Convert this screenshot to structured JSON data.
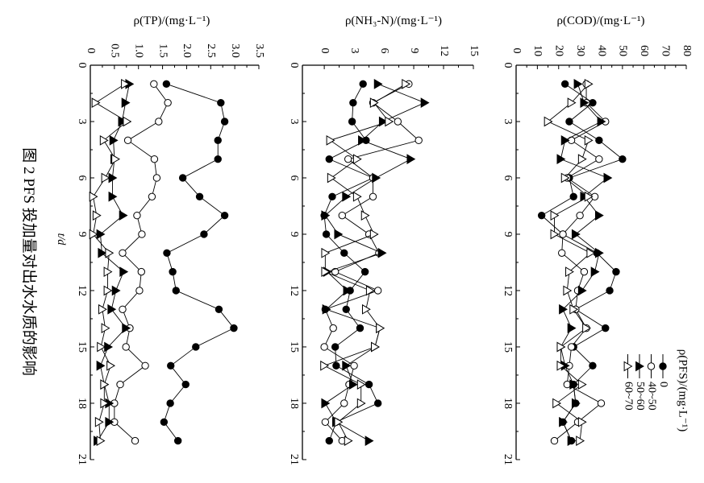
{
  "caption": "图 2  PFS 投加量对出水水质的影响",
  "legend": {
    "title": "ρ(PFS)/(mg·L⁻¹)",
    "entries": [
      {
        "label": "0",
        "marker": "filled-circle"
      },
      {
        "label": "40~50",
        "marker": "open-circle"
      },
      {
        "label": "50~60",
        "marker": "filled-triangle"
      },
      {
        "label": "60~70",
        "marker": "open-triangle"
      }
    ]
  },
  "orientation": "rotated 90° clockwise",
  "chart_data": [
    {
      "type": "line",
      "title": "",
      "xlabel": "t/d",
      "ylabel": "ρ(TP)/(mg·L⁻¹)",
      "xlim": [
        0,
        21
      ],
      "ylim": [
        0,
        3.5
      ],
      "xticks": [
        "0",
        "3",
        "6",
        "9",
        "12",
        "15",
        "18",
        "21"
      ],
      "yticks": [
        "0",
        "0.5",
        "1.0",
        "1.5",
        "2.0",
        "2.5",
        "3.0",
        "3.5"
      ],
      "x": [
        1,
        2,
        3,
        4,
        5,
        6,
        7,
        8,
        9,
        10,
        11,
        12,
        13,
        14,
        15,
        16,
        17,
        18,
        19,
        20
      ],
      "series": [
        {
          "name": "0",
          "values": [
            1.58,
            2.71,
            2.79,
            2.65,
            2.65,
            1.92,
            2.27,
            2.79,
            2.36,
            1.59,
            1.71,
            1.78,
            2.67,
            2.98,
            2.19,
            1.67,
            1.98,
            1.66,
            1.53,
            1.82
          ]
        },
        {
          "name": "40~50",
          "values": [
            1.32,
            1.61,
            1.42,
            0.78,
            1.33,
            1.38,
            1.28,
            0.97,
            1.07,
            0.67,
            1.06,
            1.02,
            0.67,
            0.82,
            0.74,
            1.14,
            0.62,
            0.5,
            0.5,
            0.93
          ]
        },
        {
          "name": "50~60",
          "values": [
            0.81,
            0.73,
            0.66,
            0.48,
            0.5,
            0.46,
            0.46,
            0.68,
            0.21,
            0.24,
            0.69,
            0.53,
            0.44,
            0.74,
            0.37,
            0.21,
            0.29,
            0.39,
            0.39,
            0.15
          ]
        },
        {
          "name": "60~70",
          "values": [
            0.72,
            0.11,
            0.76,
            0.28,
            0.52,
            0.31,
            0.06,
            0.13,
            0.06,
            0.39,
            0.36,
            0.36,
            0.25,
            0.31,
            0.22,
            0.42,
            0.29,
            0.29,
            0.18,
            0.21
          ]
        }
      ]
    },
    {
      "type": "line",
      "title": "",
      "xlabel": "t/d",
      "ylabel": "ρ(NH₃-N)/(mg·L⁻¹)",
      "xlim": [
        0,
        21
      ],
      "ylim": [
        -2.2,
        15
      ],
      "xticks": [
        "0",
        "3",
        "6",
        "9",
        "12",
        "15",
        "18",
        "21"
      ],
      "yticks": [
        "0",
        "3",
        "6",
        "9",
        "12",
        "15"
      ],
      "x": [
        1,
        2,
        3,
        4,
        5,
        6,
        7,
        8,
        9,
        10,
        11,
        12,
        13,
        14,
        15,
        16,
        17,
        18,
        19,
        20
      ],
      "series": [
        {
          "name": "0",
          "values": [
            3.9,
            2.9,
            2.8,
            4.2,
            0.5,
            4.9,
            0.8,
            0,
            0.2,
            2.0,
            4.1,
            2.6,
            2.2,
            3.6,
            1.1,
            1.2,
            4.5,
            5.4,
            1.2,
            0.5
          ]
        },
        {
          "name": "40~50",
          "values": [
            8.5,
            4.9,
            7.4,
            9.5,
            2.4,
            4.9,
            4.9,
            1.8,
            4.5,
            5.5,
            1.1,
            5.4,
            0.1,
            0.9,
            0,
            3.0,
            2.5,
            2.0,
            0.1,
            1.8
          ]
        },
        {
          "name": "50~60",
          "values": [
            5.4,
            10.1,
            5.9,
            3.8,
            8.7,
            5.2,
            2.2,
            0.1,
            1.4,
            5.8,
            0.3,
            2.3,
            0.2,
            5.6,
            5.1,
            2.2,
            2.9,
            0.1,
            1.2,
            4.5
          ]
        },
        {
          "name": "60~70",
          "values": [
            8.2,
            5.0,
            6.5,
            0.6,
            3.3,
            0.7,
            3.3,
            4.1,
            5.0,
            0.1,
            0.1,
            4.6,
            4.2,
            5.6,
            5.1,
            0,
            3.7,
            3.7,
            1.4,
            2.4
          ]
        }
      ]
    },
    {
      "type": "line",
      "title": "",
      "xlabel": "t/d",
      "ylabel": "ρ(COD)/(mg·L⁻¹)",
      "xlim": [
        0,
        21
      ],
      "ylim": [
        0,
        80
      ],
      "xticks": [
        "0",
        "3",
        "6",
        "9",
        "12",
        "15",
        "18",
        "21"
      ],
      "yticks": [
        "0",
        "10",
        "20",
        "30",
        "40",
        "50",
        "60",
        "70",
        "80"
      ],
      "x": [
        1,
        2,
        3,
        4,
        5,
        6,
        7,
        8,
        9,
        10,
        11,
        12,
        13,
        14,
        15,
        16,
        17,
        18,
        19,
        20
      ],
      "series": [
        {
          "name": "0",
          "values": [
            23,
            36,
            25,
            39,
            50,
            25,
            27,
            12,
            22,
            38,
            47,
            44,
            28,
            42,
            27,
            36,
            27,
            28,
            22,
            26
          ]
        },
        {
          "name": "40~50",
          "values": [
            33,
            33,
            42,
            26,
            39,
            24,
            37,
            30,
            22,
            21.5,
            32,
            29,
            28,
            33,
            26,
            25,
            24,
            40,
            29,
            18
          ]
        },
        {
          "name": "50~60",
          "values": [
            29,
            32,
            40,
            23,
            21,
            43,
            32,
            39,
            28,
            39,
            37,
            31,
            22,
            26,
            21,
            23,
            27,
            28,
            22,
            26
          ]
        },
        {
          "name": "60~70",
          "values": [
            34,
            26,
            15,
            34,
            31,
            23,
            34,
            18,
            18,
            35,
            25,
            24,
            27,
            33,
            21,
            21,
            31,
            19,
            31,
            30
          ]
        }
      ]
    }
  ]
}
